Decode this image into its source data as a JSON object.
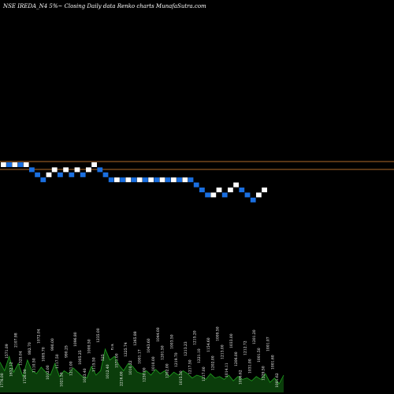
{
  "header": {
    "title": "NSE IREDA_N4  5%~  Closing Daily data  Renko  charts MunafaSutra.com"
  },
  "colors": {
    "background": "#000000",
    "up_brick": "#ffffff",
    "down_brick": "#1a6fe0",
    "reference_line": "#b06a2a",
    "volume_area": "#0b3d0b",
    "volume_line": "#1fa01f"
  },
  "chart_data": {
    "type": "renko",
    "title": "NSE IREDA_N4  5%~  Closing Daily data  Renko  charts MunafaSutra.com",
    "brick_levels": [
      0,
      0,
      0,
      0,
      0,
      -1,
      -2,
      -3,
      -2,
      -1,
      -2,
      -1,
      -2,
      -1,
      -2,
      -1,
      0,
      -1,
      -2,
      -3,
      -3,
      -3,
      -3,
      -3,
      -3,
      -3,
      -3,
      -3,
      -3,
      -3,
      -3,
      -3,
      -3,
      -3,
      -4,
      -5,
      -6,
      -6,
      -5,
      -6,
      -5,
      -4,
      -5,
      -6,
      -7,
      -6,
      -5
    ],
    "brick_directions": [
      "up",
      "down",
      "up",
      "down",
      "up",
      "down",
      "down",
      "down",
      "up",
      "up",
      "down",
      "up",
      "down",
      "up",
      "down",
      "up",
      "up",
      "down",
      "down",
      "down",
      "up",
      "down",
      "up",
      "down",
      "up",
      "down",
      "up",
      "down",
      "up",
      "down",
      "up",
      "down",
      "up",
      "down",
      "down",
      "down",
      "down",
      "up",
      "up",
      "down",
      "up",
      "up",
      "down",
      "down",
      "down",
      "up",
      "up"
    ],
    "reference_lines": 2,
    "volume_labels": [
      "1776.00",
      "1571.09",
      "1632.12",
      "2107.98",
      "1325.04",
      "1726.00",
      "882.70",
      "1110.50",
      "1072.04",
      "1005.70",
      "1012.00",
      "990.00",
      "1117.50",
      "1021.50",
      "990.25",
      "1211.00",
      "1096.80",
      "1005.25",
      "1033.40",
      "1000.50",
      "1115.50",
      "1235.00",
      "525",
      "1012.40",
      "n.a.",
      "1571.00",
      "2216.00",
      "1225.74",
      "1010.22",
      "1265.88",
      "1001.17",
      "1230.00",
      "1043.60",
      "1010.00",
      "1044.00",
      "1201.50",
      "1202.00",
      "1003.50",
      "1219.70",
      "1015.50",
      "1213.23",
      "1217.50",
      "1215.20",
      "1221.10",
      "1217.00",
      "1154.60",
      "1202.00",
      "1009.50",
      "1213.00",
      "1014.11",
      "1033.00",
      "1206.00",
      "1006.62",
      "1212.72",
      "1031.00",
      "1201.20",
      "1001.50",
      "1229.50",
      "1001.07",
      "1001.60",
      "1001.62"
    ],
    "volume_values": [
      42,
      30,
      50,
      28,
      40,
      22,
      45,
      30,
      26,
      35,
      28,
      24,
      40,
      22,
      30,
      26,
      34,
      28,
      22,
      20,
      36,
      24,
      30,
      60,
      45,
      50,
      38,
      30,
      40,
      36,
      28,
      26,
      30,
      24,
      32,
      26,
      30,
      22,
      28,
      24,
      30,
      26,
      20,
      24,
      22,
      18,
      26,
      20,
      22,
      18,
      24,
      16,
      22,
      18,
      20,
      16,
      22,
      18,
      26,
      14,
      20,
      12,
      24
    ]
  }
}
